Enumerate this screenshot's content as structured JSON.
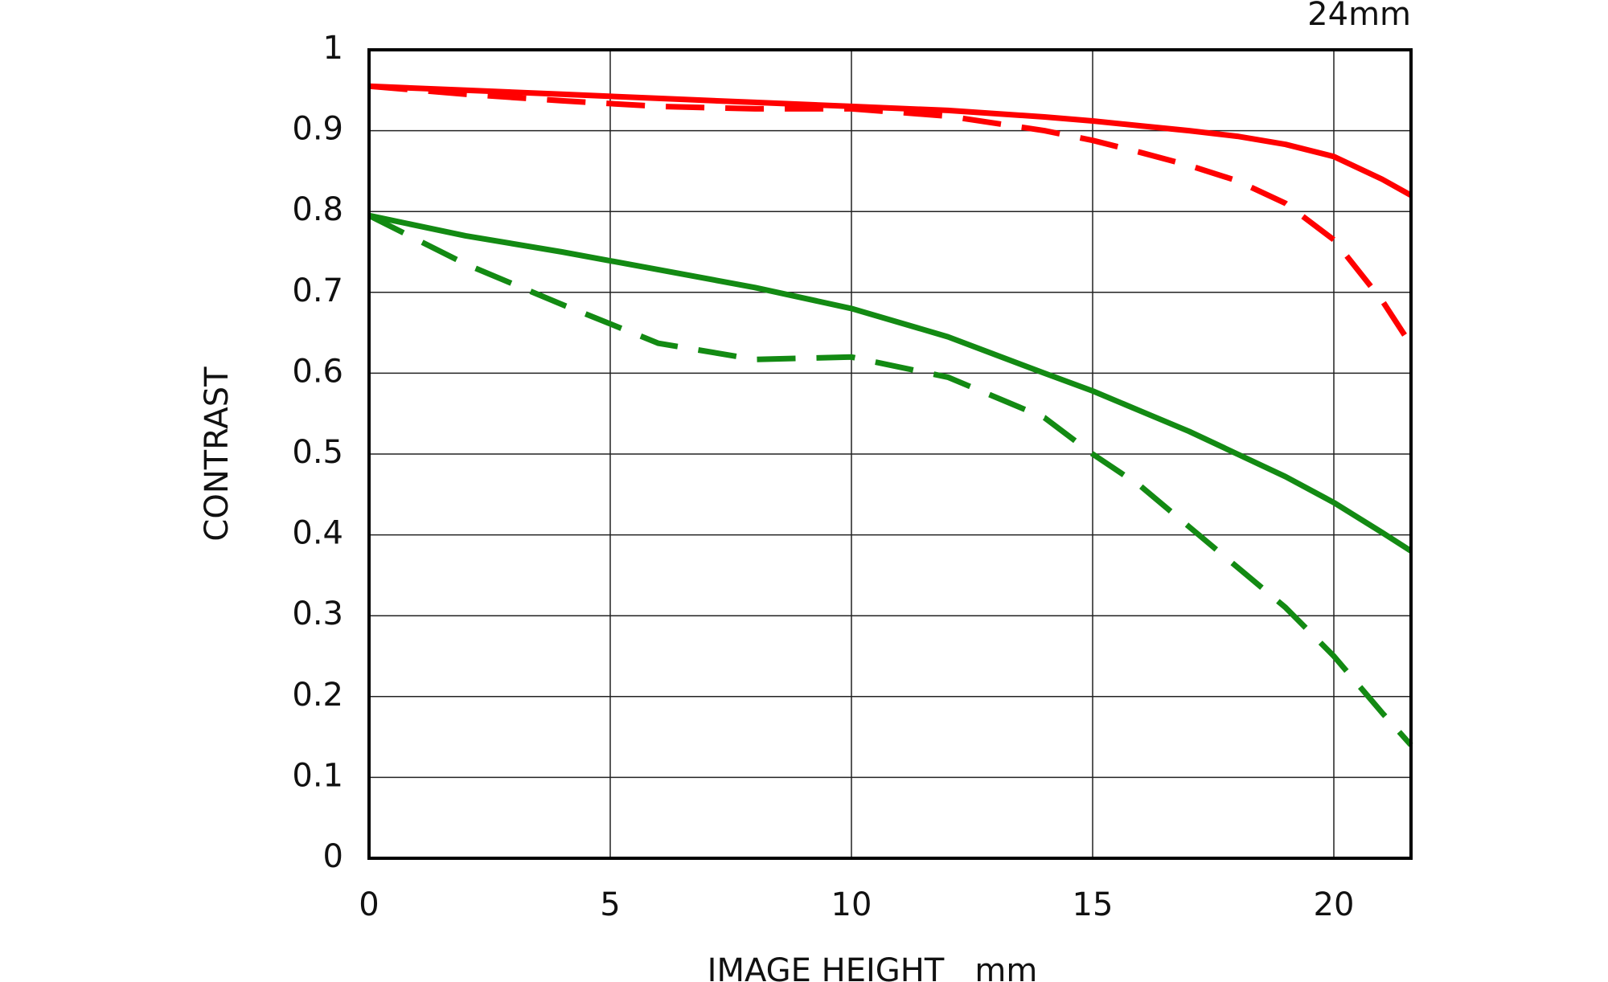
{
  "chart_data": {
    "type": "line",
    "title": "24mm",
    "x_label": "IMAGE HEIGHT   mm",
    "y_label": "CONTRAST",
    "x": [
      0,
      2,
      4,
      6,
      8,
      10,
      12,
      14,
      15,
      16,
      17,
      18,
      19,
      20,
      21,
      21.6
    ],
    "series": [
      {
        "color": "#ff0000",
        "dashed": false,
        "values": [
          0.955,
          0.95,
          0.945,
          0.94,
          0.935,
          0.93,
          0.925,
          0.917,
          0.912,
          0.906,
          0.9,
          0.893,
          0.883,
          0.868,
          0.84,
          0.82
        ]
      },
      {
        "color": "#ff0000",
        "dashed": true,
        "values": [
          0.955,
          0.945,
          0.937,
          0.93,
          0.927,
          0.927,
          0.918,
          0.9,
          0.888,
          0.873,
          0.857,
          0.838,
          0.81,
          0.765,
          0.69,
          0.635
        ]
      },
      {
        "color": "#138a13",
        "dashed": false,
        "values": [
          0.795,
          0.77,
          0.75,
          0.728,
          0.706,
          0.68,
          0.645,
          0.6,
          0.578,
          0.553,
          0.528,
          0.5,
          0.472,
          0.44,
          0.403,
          0.38
        ]
      },
      {
        "color": "#138a13",
        "dashed": true,
        "values": [
          0.795,
          0.735,
          0.685,
          0.637,
          0.617,
          0.62,
          0.595,
          0.545,
          0.5,
          0.46,
          0.41,
          0.36,
          0.31,
          0.25,
          0.18,
          0.14
        ]
      }
    ],
    "xlim": [
      0,
      21.6
    ],
    "xticks": [
      0,
      5,
      10,
      15,
      20
    ],
    "ylim": [
      0,
      1
    ],
    "yticks": [
      0,
      0.1,
      0.2,
      0.3,
      0.4,
      0.5,
      0.6,
      0.7,
      0.8,
      0.9,
      1
    ],
    "grid": true
  }
}
